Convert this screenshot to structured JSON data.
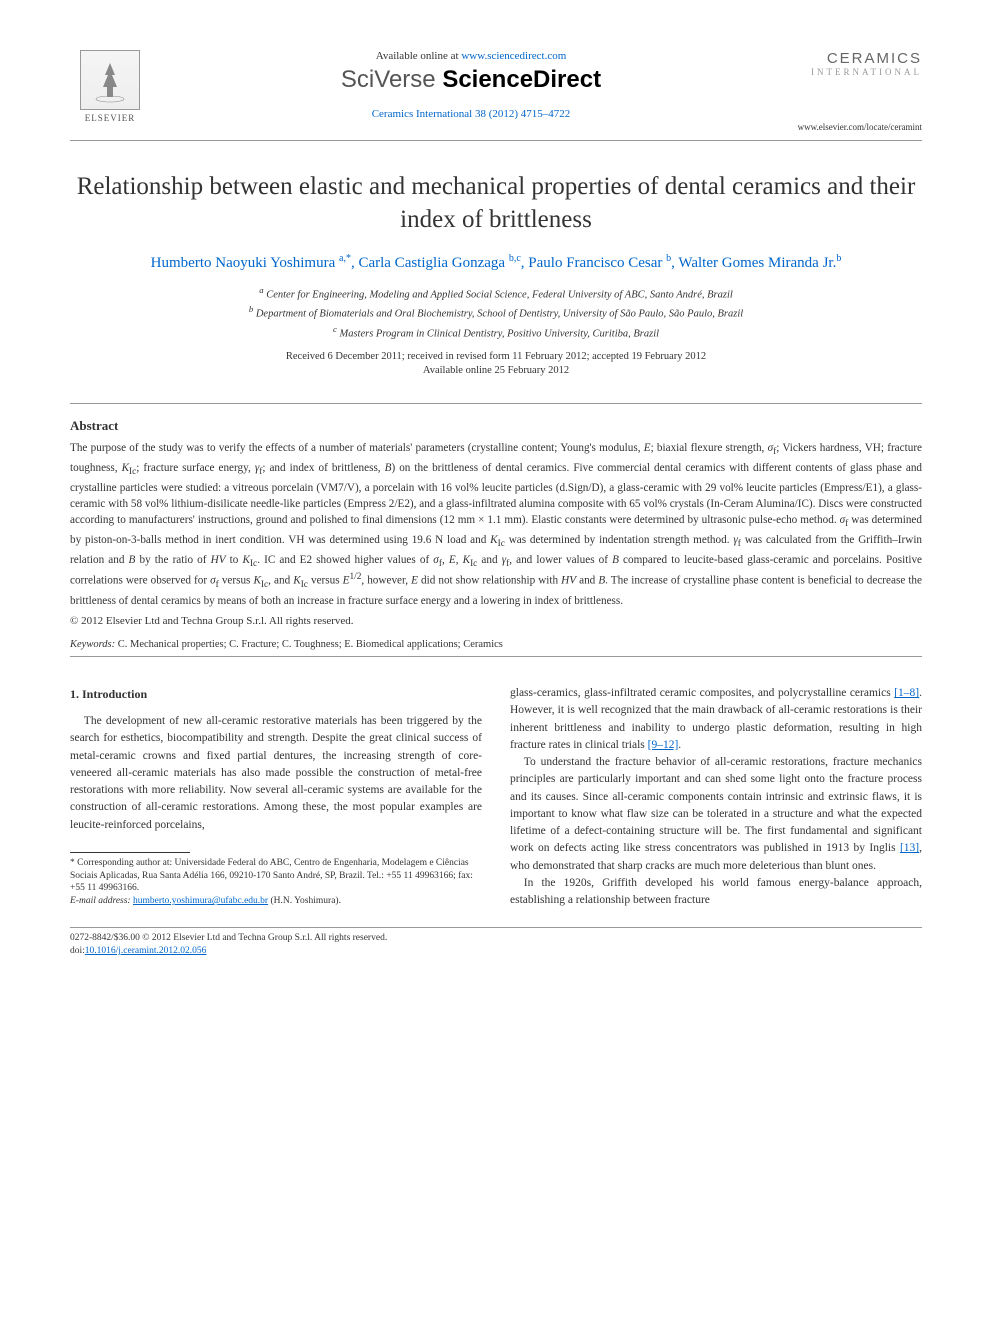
{
  "header": {
    "elsevier_label": "ELSEVIER",
    "available_prefix": "Available online at ",
    "available_url": "www.sciencedirect.com",
    "brand_prefix": "SciVerse ",
    "brand_main": "ScienceDirect",
    "journal_ref": "Ceramics International 38 (2012) 4715–4722",
    "journal_logo_title": "CERAMICS",
    "journal_logo_sub": "INTERNATIONAL",
    "journal_url": "www.elsevier.com/locate/ceramint"
  },
  "article": {
    "title": "Relationship between elastic and mechanical properties of dental ceramics and their index of brittleness",
    "authors_html": "Humberto Naoyuki Yoshimura <sup>a,*</sup>, Carla Castiglia Gonzaga <sup>b,c</sup>, Paulo Francisco Cesar <sup>b</sup>, Walter Gomes Miranda Jr.<sup>b</sup>",
    "affiliations": {
      "a": "Center for Engineering, Modeling and Applied Social Science, Federal University of ABC, Santo André, Brazil",
      "b": "Department of Biomaterials and Oral Biochemistry, School of Dentistry, University of São Paulo, São Paulo, Brazil",
      "c": "Masters Program in Clinical Dentistry, Positivo University, Curitiba, Brazil"
    },
    "dates_line1": "Received 6 December 2011; received in revised form 11 February 2012; accepted 19 February 2012",
    "dates_line2": "Available online 25 February 2012"
  },
  "abstract": {
    "heading": "Abstract",
    "text": "The purpose of the study was to verify the effects of a number of materials' parameters (crystalline content; Young's modulus, E; biaxial flexure strength, σf; Vickers hardness, VH; fracture toughness, KIc; fracture surface energy, γf; and index of brittleness, B) on the brittleness of dental ceramics. Five commercial dental ceramics with different contents of glass phase and crystalline particles were studied: a vitreous porcelain (VM7/V), a porcelain with 16 vol% leucite particles (d.Sign/D), a glass-ceramic with 29 vol% leucite particles (Empress/E1), a glass-ceramic with 58 vol% lithium-disilicate needle-like particles (Empress 2/E2), and a glass-infiltrated alumina composite with 65 vol% crystals (In-Ceram Alumina/IC). Discs were constructed according to manufacturers' instructions, ground and polished to final dimensions (12 mm × 1.1 mm). Elastic constants were determined by ultrasonic pulse-echo method. σf was determined by piston-on-3-balls method in inert condition. VH was determined using 19.6 N load and KIc was determined by indentation strength method. γf was calculated from the Griffith–Irwin relation and B by the ratio of HV to KIc. IC and E2 showed higher values of σf, E, KIc and γf, and lower values of B compared to leucite-based glass-ceramic and porcelains. Positive correlations were observed for σf versus KIc, and KIc versus E1/2, however, E did not show relationship with HV and B. The increase of crystalline phase content is beneficial to decrease the brittleness of dental ceramics by means of both an increase in fracture surface energy and a lowering in index of brittleness.",
    "copyright": "© 2012 Elsevier Ltd and Techna Group S.r.l. All rights reserved."
  },
  "keywords": {
    "label": "Keywords:",
    "text": " C. Mechanical properties; C. Fracture; C. Toughness; E. Biomedical applications; Ceramics"
  },
  "body": {
    "intro_heading": "1.  Introduction",
    "left_p1": "The development of new all-ceramic restorative materials has been triggered by the search for esthetics, biocompatibility and strength. Despite the great clinical success of metal-ceramic crowns and fixed partial dentures, the increasing strength of core-veneered all-ceramic materials has also made possible the construction of metal-free restorations with more reliability. Now several all-ceramic systems are available for the construction of all-ceramic restorations. Among these, the most popular examples are leucite-reinforced porcelains,",
    "right_p1_pre": "glass-ceramics, glass-infiltrated ceramic composites, and polycrystalline ceramics ",
    "right_p1_ref1": "[1–8]",
    "right_p1_mid": ". However, it is well recognized that the main drawback of all-ceramic restorations is their inherent brittleness and inability to undergo plastic deformation, resulting in high fracture rates in clinical trials ",
    "right_p1_ref2": "[9–12]",
    "right_p1_post": ".",
    "right_p2_pre": "To understand the fracture behavior of all-ceramic restorations, fracture mechanics principles are particularly important and can shed some light onto the fracture process and its causes. Since all-ceramic components contain intrinsic and extrinsic flaws, it is important to know what flaw size can be tolerated in a structure and what the expected lifetime of a defect-containing structure will be. The first fundamental and significant work on defects acting like stress concentrators was published in 1913 by Inglis ",
    "right_p2_ref": "[13]",
    "right_p2_post": ", who demonstrated that sharp cracks are much more deleterious than blunt ones.",
    "right_p3": "In the 1920s, Griffith developed his world famous energy-balance approach, establishing a relationship between fracture"
  },
  "footnote": {
    "corresponding": "* Corresponding author at: Universidade Federal do ABC, Centro de Engenharia, Modelagem e Ciências Sociais Aplicadas, Rua Santa Adélia 166, 09210-170 Santo André, SP, Brazil. Tel.: +55 11 49963166; fax: +55 11 49963166.",
    "email_label": "E-mail address: ",
    "email": "humberto.yoshimura@ufabc.edu.br",
    "email_suffix": " (H.N. Yoshimura)."
  },
  "footer": {
    "line1": "0272-8842/$36.00 © 2012 Elsevier Ltd and Techna Group S.r.l. All rights reserved.",
    "doi_prefix": "doi:",
    "doi": "10.1016/j.ceramint.2012.02.056"
  },
  "colors": {
    "link": "#0066cc",
    "text": "#333333",
    "rule": "#999999"
  }
}
